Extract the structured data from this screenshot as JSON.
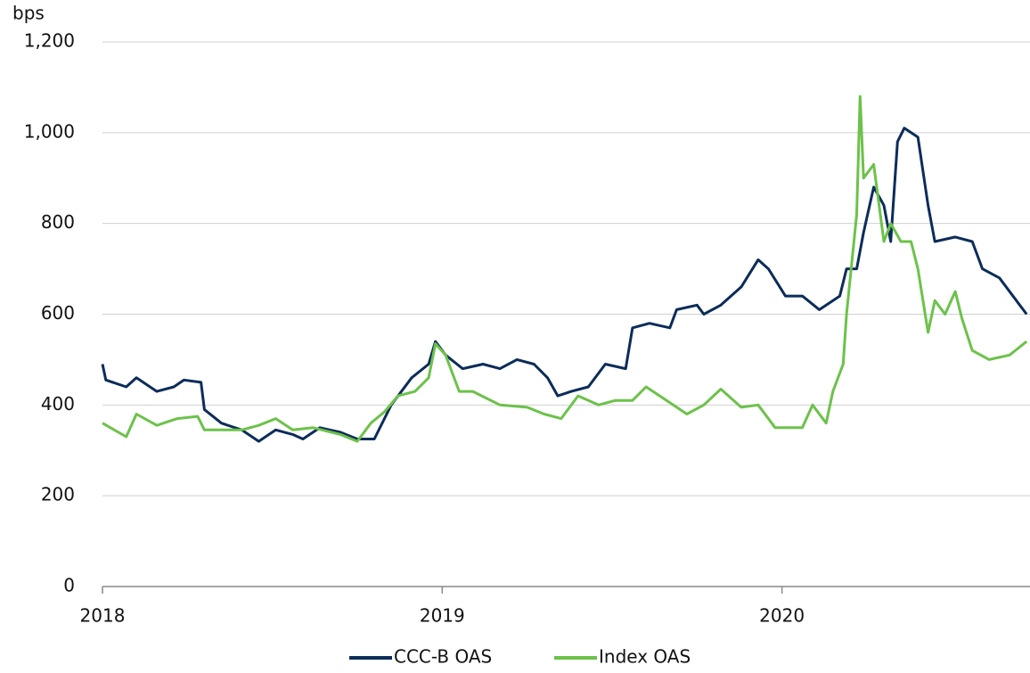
{
  "chart_data": {
    "type": "line",
    "y_label": "bps",
    "xlim": [
      2018,
      2020.73
    ],
    "xticks": [
      2018,
      2019,
      2020
    ],
    "ylim": [
      0,
      1200
    ],
    "yticks": [
      0,
      200,
      400,
      600,
      800,
      {
        "value": 1000,
        "label": "1,000"
      },
      {
        "value": 1200,
        "label": "1,200"
      }
    ],
    "grid": true,
    "legend": "bottom",
    "series": [
      {
        "name": "CCC-B OAS",
        "color": "#0c2c5a",
        "x": [
          2018.0,
          2018.01,
          2018.07,
          2018.1,
          2018.16,
          2018.21,
          2018.24,
          2018.29,
          2018.3,
          2018.35,
          2018.41,
          2018.46,
          2018.51,
          2018.56,
          2018.59,
          2018.64,
          2018.7,
          2018.75,
          2018.8,
          2018.85,
          2018.91,
          2018.96,
          2018.98,
          2019.01,
          2019.06,
          2019.12,
          2019.17,
          2019.22,
          2019.27,
          2019.31,
          2019.34,
          2019.38,
          2019.43,
          2019.48,
          2019.54,
          2019.56,
          2019.61,
          2019.67,
          2019.69,
          2019.75,
          2019.77,
          2019.82,
          2019.88,
          2019.93,
          2019.96,
          2020.01,
          2020.06,
          2020.11,
          2020.17,
          2020.19,
          2020.22,
          2020.24,
          2020.27,
          2020.3,
          2020.32,
          2020.34,
          2020.36,
          2020.4,
          2020.43,
          2020.45,
          2020.51,
          2020.56,
          2020.59,
          2020.64,
          2020.69,
          2020.72
        ],
        "values": [
          490,
          455,
          440,
          460,
          430,
          440,
          455,
          450,
          390,
          360,
          345,
          320,
          345,
          335,
          325,
          350,
          340,
          325,
          325,
          400,
          460,
          490,
          540,
          510,
          480,
          490,
          480,
          500,
          490,
          460,
          420,
          430,
          440,
          490,
          480,
          570,
          580,
          570,
          610,
          620,
          600,
          620,
          660,
          720,
          700,
          640,
          640,
          610,
          640,
          700,
          700,
          780,
          880,
          840,
          760,
          980,
          1010,
          990,
          840,
          760,
          770,
          760,
          700,
          680,
          630,
          600
        ]
      },
      {
        "name": "Index OAS",
        "color": "#6cc24a",
        "x": [
          2018.0,
          2018.07,
          2018.1,
          2018.16,
          2018.22,
          2018.28,
          2018.3,
          2018.35,
          2018.41,
          2018.46,
          2018.51,
          2018.56,
          2018.62,
          2018.7,
          2018.75,
          2018.79,
          2018.83,
          2018.87,
          2018.92,
          2018.96,
          2018.98,
          2019.01,
          2019.05,
          2019.09,
          2019.17,
          2019.25,
          2019.3,
          2019.35,
          2019.4,
          2019.46,
          2019.51,
          2019.56,
          2019.6,
          2019.64,
          2019.72,
          2019.77,
          2019.82,
          2019.88,
          2019.93,
          2019.98,
          2020.06,
          2020.09,
          2020.13,
          2020.15,
          2020.18,
          2020.19,
          2020.22,
          2020.23,
          2020.24,
          2020.27,
          2020.3,
          2020.32,
          2020.35,
          2020.38,
          2020.4,
          2020.43,
          2020.45,
          2020.48,
          2020.51,
          2020.53,
          2020.56,
          2020.61,
          2020.67,
          2020.72
        ],
        "values": [
          360,
          330,
          380,
          355,
          370,
          375,
          345,
          345,
          345,
          355,
          370,
          345,
          350,
          335,
          320,
          360,
          385,
          420,
          430,
          460,
          535,
          510,
          430,
          430,
          400,
          395,
          380,
          370,
          420,
          400,
          410,
          410,
          440,
          420,
          380,
          400,
          435,
          395,
          400,
          350,
          350,
          400,
          360,
          430,
          490,
          600,
          820,
          1080,
          900,
          930,
          760,
          800,
          760,
          760,
          700,
          560,
          630,
          600,
          650,
          590,
          520,
          500,
          510,
          540
        ]
      }
    ]
  }
}
